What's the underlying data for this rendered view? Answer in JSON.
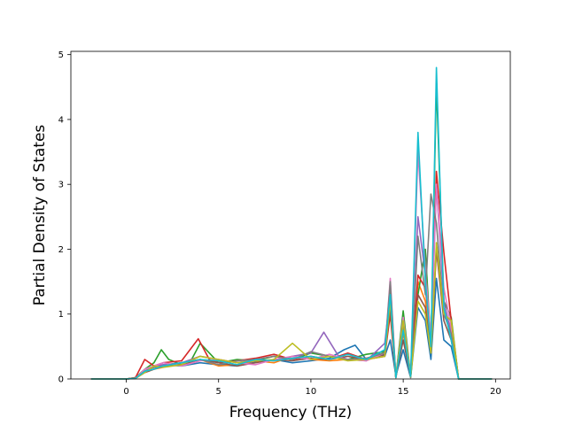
{
  "chart_data": {
    "type": "line",
    "title": "",
    "xlabel": "Frequency (THz)",
    "ylabel": "Partial Density of States",
    "xlim": [
      -3,
      20.8
    ],
    "ylim": [
      0,
      5.05
    ],
    "xticks": [
      0,
      5,
      10,
      15,
      20
    ],
    "yticks": [
      0,
      1,
      2,
      3,
      4,
      5
    ],
    "grid": false,
    "legend": "none",
    "series_count_note": "many overlapping series (tab10 color cycle)",
    "colors": [
      "#1f77b4",
      "#ff7f0e",
      "#2ca02c",
      "#d62728",
      "#9467bd",
      "#8c564b",
      "#e377c2",
      "#7f7f7f",
      "#bcbd22",
      "#17becf"
    ],
    "series": [
      {
        "color_index": 0,
        "x": [
          -1.9,
          0,
          0.5,
          1,
          1.5,
          2,
          3,
          4,
          5,
          6,
          7,
          8,
          9,
          10,
          11,
          11.8,
          12.4,
          13,
          13.6,
          14,
          14.3,
          14.6,
          15,
          15.4,
          15.8,
          16.2,
          16.5,
          16.8,
          17.2,
          17.6,
          18,
          19.8
        ],
        "y": [
          0,
          0,
          0.02,
          0.12,
          0.18,
          0.22,
          0.2,
          0.25,
          0.22,
          0.2,
          0.26,
          0.3,
          0.25,
          0.28,
          0.32,
          0.45,
          0.52,
          0.3,
          0.4,
          0.35,
          0.6,
          0.05,
          0.45,
          0.02,
          1.1,
          0.9,
          0.3,
          1.55,
          0.6,
          0.5,
          0,
          0
        ]
      },
      {
        "color_index": 1,
        "x": [
          -1.9,
          0,
          0.5,
          1,
          1.5,
          2,
          3,
          4,
          5,
          6,
          7,
          8,
          9,
          10,
          11,
          12,
          13,
          14,
          14.3,
          14.6,
          15,
          15.4,
          15.8,
          16.2,
          16.5,
          16.8,
          17.2,
          17.6,
          18,
          19.8
        ],
        "y": [
          0,
          0,
          0.01,
          0.1,
          0.15,
          0.18,
          0.25,
          0.3,
          0.2,
          0.22,
          0.28,
          0.25,
          0.35,
          0.3,
          0.28,
          0.3,
          0.32,
          0.4,
          1.2,
          0.02,
          0.7,
          0.05,
          1.5,
          1.2,
          0.4,
          2.0,
          1.0,
          0.8,
          0,
          0
        ]
      },
      {
        "color_index": 2,
        "x": [
          -1.9,
          0,
          0.5,
          1,
          1.5,
          1.9,
          2.3,
          3,
          3.5,
          4,
          5,
          6,
          7,
          8,
          9,
          10,
          11,
          12,
          13,
          14,
          14.3,
          14.6,
          15,
          15.4,
          15.8,
          16.2,
          16.5,
          16.8,
          17.2,
          17.6,
          18,
          19.8
        ],
        "y": [
          0,
          0,
          0.02,
          0.15,
          0.25,
          0.45,
          0.3,
          0.22,
          0.28,
          0.55,
          0.25,
          0.3,
          0.28,
          0.35,
          0.3,
          0.4,
          0.35,
          0.3,
          0.38,
          0.42,
          1.4,
          0.03,
          1.05,
          0.05,
          1.3,
          2.0,
          0.5,
          4.55,
          1.2,
          0.95,
          0,
          0
        ]
      },
      {
        "color_index": 3,
        "x": [
          -1.9,
          0,
          0.5,
          1,
          1.5,
          2,
          3,
          3.9,
          4.5,
          5,
          6,
          7,
          8,
          9,
          10,
          11,
          12,
          13,
          14,
          14.3,
          14.6,
          15,
          15.4,
          15.8,
          16.2,
          16.5,
          16.8,
          17.2,
          17.6,
          18,
          19.8
        ],
        "y": [
          0,
          0,
          0.02,
          0.3,
          0.2,
          0.25,
          0.28,
          0.62,
          0.3,
          0.25,
          0.28,
          0.32,
          0.38,
          0.3,
          0.35,
          0.3,
          0.4,
          0.3,
          0.35,
          1.0,
          0.02,
          0.8,
          0.04,
          1.6,
          1.4,
          0.6,
          3.2,
          1.95,
          0.9,
          0,
          0
        ]
      },
      {
        "color_index": 4,
        "x": [
          -1.9,
          0,
          0.5,
          1,
          1.5,
          2,
          3,
          4,
          5,
          6,
          7,
          8,
          9,
          10,
          10.7,
          11.5,
          12,
          13,
          14,
          14.3,
          14.6,
          15,
          15.4,
          15.8,
          16.2,
          16.5,
          16.8,
          17.2,
          17.6,
          18,
          19.8
        ],
        "y": [
          0,
          0,
          0.01,
          0.12,
          0.2,
          0.22,
          0.25,
          0.35,
          0.3,
          0.25,
          0.3,
          0.28,
          0.35,
          0.4,
          0.72,
          0.35,
          0.3,
          0.28,
          0.55,
          1.3,
          0.02,
          0.9,
          0.03,
          2.5,
          1.6,
          0.5,
          3.0,
          1.2,
          0.7,
          0,
          0
        ]
      },
      {
        "color_index": 5,
        "x": [
          -1.9,
          0,
          0.5,
          1,
          1.5,
          2,
          3,
          4,
          5,
          6,
          7,
          8,
          9,
          10,
          11,
          12,
          13,
          14,
          14.3,
          14.6,
          15,
          15.4,
          15.8,
          16.2,
          16.5,
          16.8,
          17.2,
          17.6,
          18,
          19.8
        ],
        "y": [
          0,
          0,
          0.01,
          0.1,
          0.15,
          0.2,
          0.22,
          0.3,
          0.25,
          0.2,
          0.25,
          0.3,
          0.28,
          0.32,
          0.3,
          0.35,
          0.3,
          0.38,
          1.1,
          0.02,
          0.6,
          0.03,
          1.3,
          1.1,
          0.4,
          2.0,
          0.9,
          0.6,
          0,
          0
        ]
      },
      {
        "color_index": 6,
        "x": [
          -1.9,
          0,
          0.5,
          1,
          1.5,
          2,
          3,
          4,
          5,
          6,
          7,
          8,
          9,
          10,
          11,
          12,
          13,
          14,
          14.3,
          14.6,
          15,
          15.4,
          15.8,
          16.2,
          16.5,
          16.8,
          17.2,
          17.6,
          18,
          19.8
        ],
        "y": [
          0,
          0,
          0.01,
          0.15,
          0.2,
          0.25,
          0.2,
          0.28,
          0.3,
          0.25,
          0.22,
          0.3,
          0.35,
          0.3,
          0.38,
          0.3,
          0.28,
          0.4,
          1.55,
          0.02,
          0.95,
          0.04,
          3.5,
          1.7,
          0.6,
          3.0,
          1.4,
          0.8,
          0,
          0
        ]
      },
      {
        "color_index": 7,
        "x": [
          -1.9,
          0,
          0.5,
          1,
          1.5,
          2,
          3,
          4,
          5,
          6,
          7,
          8,
          9,
          10,
          11,
          12,
          13,
          14,
          14.3,
          14.6,
          15,
          15.4,
          15.8,
          16.2,
          16.5,
          16.8,
          17.2,
          17.6,
          18,
          19.8
        ],
        "y": [
          0,
          0,
          0.01,
          0.12,
          0.18,
          0.2,
          0.25,
          0.3,
          0.22,
          0.28,
          0.3,
          0.35,
          0.3,
          0.42,
          0.35,
          0.3,
          0.32,
          0.4,
          1.5,
          0.02,
          0.85,
          0.03,
          2.2,
          1.3,
          2.85,
          2.4,
          1.0,
          0.7,
          0,
          0
        ]
      },
      {
        "color_index": 8,
        "x": [
          -1.9,
          0,
          0.5,
          1,
          1.5,
          2,
          3,
          4,
          5,
          6,
          7,
          8,
          9,
          10,
          11,
          12,
          13,
          14,
          14.3,
          14.6,
          15,
          15.4,
          15.8,
          16.2,
          16.5,
          16.8,
          17.2,
          17.6,
          18,
          19.8
        ],
        "y": [
          0,
          0,
          0.01,
          0.1,
          0.2,
          0.18,
          0.22,
          0.35,
          0.3,
          0.25,
          0.28,
          0.3,
          0.55,
          0.3,
          0.35,
          0.28,
          0.3,
          0.35,
          1.2,
          0.02,
          0.9,
          0.03,
          1.2,
          1.0,
          0.4,
          2.1,
          1.0,
          0.9,
          0,
          0
        ]
      },
      {
        "color_index": 9,
        "x": [
          -1.9,
          0,
          0.5,
          1,
          1.5,
          2,
          3,
          4,
          5,
          6,
          7,
          8,
          9,
          10,
          11,
          12,
          13,
          14,
          14.3,
          14.6,
          15,
          15.4,
          15.8,
          16.2,
          16.5,
          16.8,
          17.2,
          17.6,
          18,
          19.8
        ],
        "y": [
          0,
          0,
          0.01,
          0.12,
          0.15,
          0.2,
          0.25,
          0.3,
          0.28,
          0.22,
          0.3,
          0.28,
          0.32,
          0.35,
          0.3,
          0.38,
          0.3,
          0.45,
          1.3,
          0.02,
          0.75,
          0.04,
          3.8,
          1.5,
          0.5,
          4.8,
          1.1,
          0.6,
          0,
          0
        ]
      }
    ]
  }
}
